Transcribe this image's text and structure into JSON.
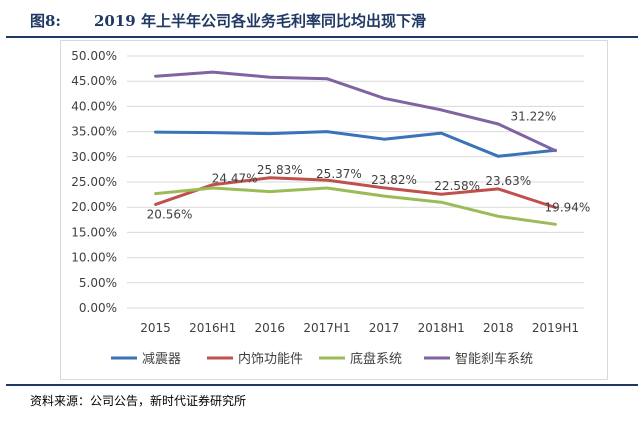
{
  "figure": {
    "number": "图8:",
    "title": "2019 年上半年公司各业务毛利率同比均出现下滑",
    "source": "资料来源：公司公告，新时代证券研究所"
  },
  "chart_data": {
    "type": "line",
    "categories": [
      "2015",
      "2016H1",
      "2016",
      "2017H1",
      "2017",
      "2018H1",
      "2018",
      "2019H1"
    ],
    "ylim": [
      0,
      50
    ],
    "ytick_step": 5,
    "ytick_format": "percent_2dp",
    "grid": true,
    "legend_position": "bottom",
    "series": [
      {
        "name": "减震器",
        "color": "#3a73b8",
        "values": [
          34.9,
          34.8,
          34.6,
          35.0,
          33.5,
          34.7,
          30.1,
          31.3
        ],
        "labels": [
          null,
          null,
          null,
          null,
          null,
          null,
          null,
          null
        ]
      },
      {
        "name": "内饰功能件",
        "color": "#c0504d",
        "values": [
          20.56,
          24.47,
          25.83,
          25.37,
          23.82,
          22.58,
          23.63,
          19.94
        ],
        "labels": [
          "20.56%",
          "24.47%",
          "25.83%",
          "25.37%",
          "23.82%",
          "22.58%",
          "23.63%",
          "19.94%"
        ]
      },
      {
        "name": "底盘系统",
        "color": "#9bbb59",
        "values": [
          22.7,
          23.8,
          23.1,
          23.8,
          22.2,
          21.0,
          18.2,
          16.6
        ],
        "labels": [
          null,
          null,
          null,
          null,
          null,
          null,
          null,
          null
        ]
      },
      {
        "name": "智能刹车系统",
        "color": "#8064a2",
        "values": [
          46.0,
          46.8,
          45.8,
          45.5,
          41.6,
          39.3,
          36.5,
          31.22
        ],
        "labels": [
          null,
          null,
          null,
          null,
          null,
          null,
          null,
          "31.22%"
        ]
      }
    ]
  }
}
